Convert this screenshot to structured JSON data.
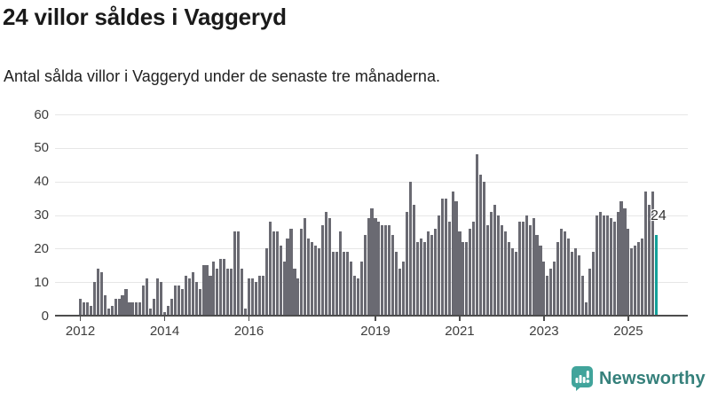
{
  "header": {
    "title": "24 villor såldes i Vaggeryd",
    "subtitle": "Antal sålda villor i Vaggeryd under de senaste tre månaderna."
  },
  "footer": {
    "brand": "Newsworthy",
    "logo_icon": "newsworthy-speech-bubble-bar-chart-icon"
  },
  "colors": {
    "bar": "#6a6a72",
    "highlight": "#12a19a",
    "gridline": "#e6e6e6",
    "axis": "#4d4d4d",
    "axis_text": "#3d3d3d",
    "title_text": "#1a1a1a",
    "brand_text": "#35807b",
    "brand_icon": "#41a49b",
    "annotation_text": "#333333"
  },
  "chart_data": {
    "type": "bar",
    "title": "24 villor såldes i Vaggeryd",
    "subtitle": "Antal sålda villor i Vaggeryd under de senaste tre månaderna.",
    "xlabel": "",
    "ylabel": "",
    "ylim": [
      0,
      60
    ],
    "grid": true,
    "y_ticks": [
      0,
      10,
      20,
      30,
      40,
      50,
      60
    ],
    "x_tick_labels": [
      "2012",
      "2014",
      "2016",
      "2019",
      "2021",
      "2023",
      "2025"
    ],
    "x_tick_month_index": [
      0,
      24,
      48,
      84,
      108,
      132,
      156
    ],
    "start_month": "2012-01",
    "end_month": "2025-09",
    "unit": "sålda villor (rullande tre månader)",
    "highlight_last": true,
    "last_value_label": "24",
    "values": [
      5,
      4,
      4,
      3,
      10,
      14,
      13,
      6,
      2,
      3,
      5,
      5,
      6,
      8,
      4,
      4,
      4,
      4,
      9,
      11,
      2,
      5,
      11,
      10,
      1,
      3,
      5,
      9,
      9,
      8,
      12,
      11,
      13,
      10,
      8,
      15,
      15,
      12,
      16,
      14,
      17,
      17,
      14,
      14,
      25,
      25,
      14,
      2,
      11,
      11,
      10,
      12,
      12,
      20,
      28,
      25,
      25,
      21,
      16,
      23,
      26,
      14,
      11,
      26,
      29,
      23,
      22,
      21,
      20,
      27,
      31,
      29,
      19,
      19,
      25,
      19,
      19,
      16,
      12,
      11,
      16,
      24,
      29,
      32,
      29,
      28,
      27,
      27,
      27,
      24,
      19,
      14,
      16,
      31,
      40,
      33,
      22,
      23,
      22,
      25,
      24,
      26,
      30,
      35,
      35,
      28,
      37,
      34,
      25,
      22,
      22,
      26,
      28,
      48,
      42,
      40,
      27,
      31,
      33,
      30,
      27,
      25,
      22,
      20,
      19,
      28,
      28,
      30,
      27,
      29,
      24,
      21,
      16,
      12,
      14,
      16,
      22,
      26,
      25,
      23,
      19,
      20,
      18,
      12,
      4,
      14,
      19,
      30,
      31,
      30,
      30,
      29,
      28,
      31,
      34,
      32,
      26,
      20,
      21,
      22,
      23,
      37,
      33,
      37,
      24
    ]
  }
}
